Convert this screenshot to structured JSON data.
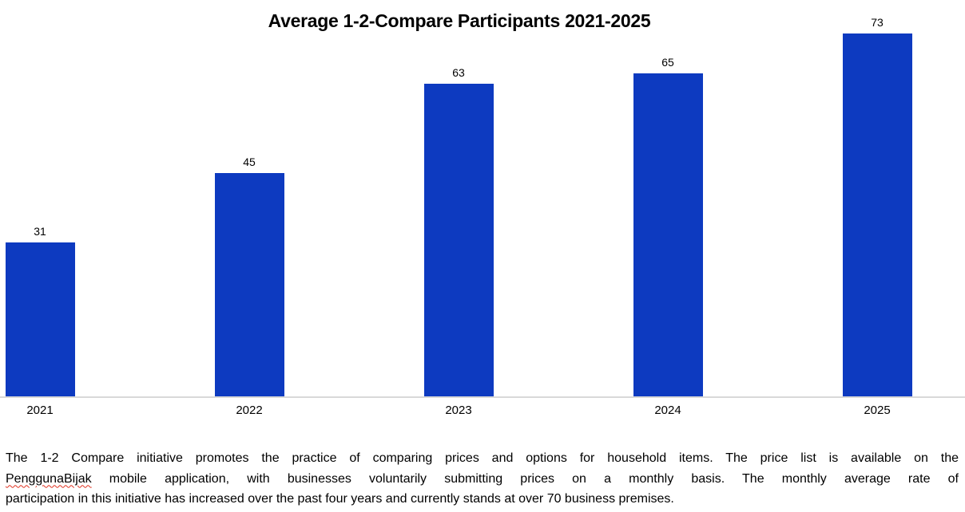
{
  "chart_data": {
    "type": "bar",
    "title": "Average 1-2-Compare Participants 2021-2025",
    "categories": [
      "2021",
      "2022",
      "2023",
      "2024",
      "2025"
    ],
    "values": [
      31,
      45,
      63,
      65,
      73
    ],
    "xlabel": "",
    "ylabel": "",
    "ylim": [
      0,
      80
    ],
    "grid": false,
    "legend": "none",
    "data_labels_shown": true,
    "bar_color": "#0d3ac0",
    "axis_line_color": "#d9d9d9",
    "label_color": "#000000"
  },
  "caption": {
    "spellcheck_color": "#e0301e",
    "lines": [
      {
        "segments": [
          {
            "text": "The 1-2 Compare initiative promotes the practice of comparing prices and options for household items. The price list is available on the"
          }
        ]
      },
      {
        "segments": [
          {
            "text": "PenggunaBijak",
            "misspelled": true
          },
          {
            "text": " mobile application, with businesses voluntarily submitting prices on a monthly basis. The monthly average rate of"
          }
        ]
      },
      {
        "segments": [
          {
            "text": "participation in this initiative has increased over the past four years and currently stands at over 70 business premises."
          }
        ]
      }
    ]
  }
}
